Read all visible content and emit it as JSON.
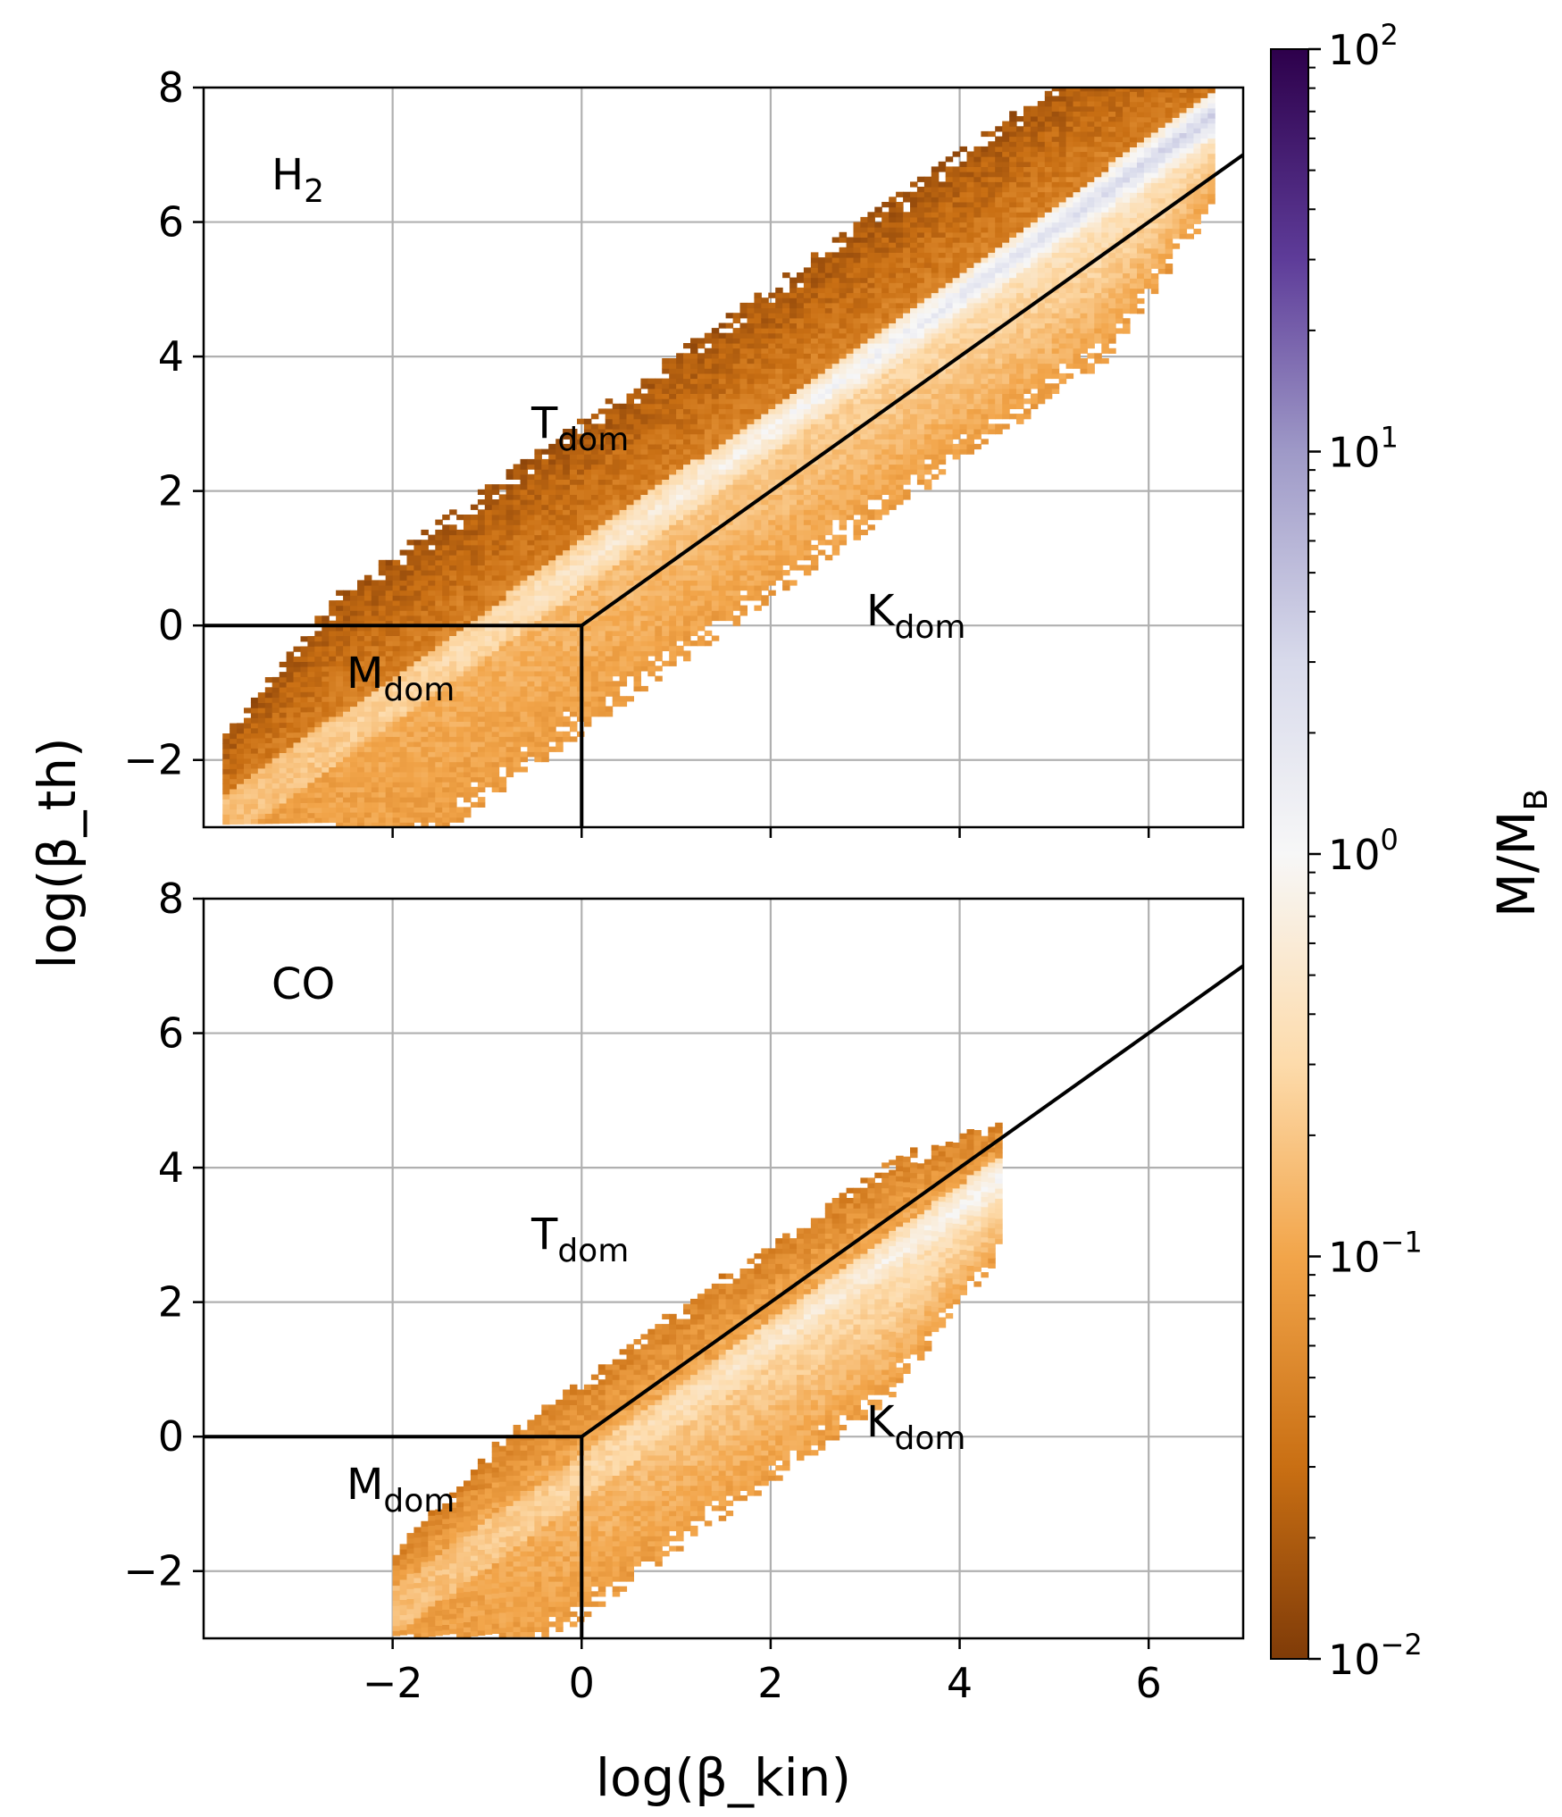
{
  "chart_data": {
    "type": "heatmap",
    "xlabel": "log(β_kin)",
    "ylabel": "log(β_th)",
    "xlim": [
      -4,
      7
    ],
    "ylim": [
      -3,
      8
    ],
    "x_ticks": [
      "−2",
      "0",
      "2",
      "4",
      "6"
    ],
    "x_tick_values": [
      -2,
      0,
      2,
      4,
      6
    ],
    "y_ticks": [
      "−2",
      "0",
      "2",
      "4",
      "6",
      "8"
    ],
    "y_tick_values": [
      -2,
      0,
      2,
      4,
      6,
      8
    ],
    "grid": true,
    "boundaries": [
      {
        "name": "horizontal",
        "points": [
          [
            -4,
            0
          ],
          [
            0,
            0
          ]
        ]
      },
      {
        "name": "vertical",
        "points": [
          [
            0,
            0
          ],
          [
            0,
            -3
          ]
        ]
      },
      {
        "name": "diagonal",
        "points": [
          [
            0,
            0
          ],
          [
            7,
            7
          ]
        ]
      }
    ],
    "panels": [
      {
        "label": "H",
        "label_sub": "2",
        "regions": [
          {
            "main": "T",
            "sub": "dom",
            "x": 0.3,
            "y": 2.6
          },
          {
            "main": "K",
            "sub": "dom",
            "x": 3.6,
            "y": 0.1
          },
          {
            "main": "M",
            "sub": "dom",
            "x": -1.8,
            "y": -0.9
          }
        ],
        "distribution": {
          "ridge_slope": 1.0,
          "ridge_intercept": 1.0,
          "x_range": [
            -3.8,
            6.7
          ],
          "lower_spread_bulk": 2.6,
          "upper_spread_bulk": 2.1,
          "core_ratio_peak": 3.0,
          "outer_ratio": 0.012
        }
      },
      {
        "label": "CO",
        "regions": [
          {
            "main": "T",
            "sub": "dom",
            "x": 0.3,
            "y": 2.6
          },
          {
            "main": "K",
            "sub": "dom",
            "x": 3.6,
            "y": 0.1
          },
          {
            "main": "M",
            "sub": "dom",
            "x": -1.8,
            "y": -0.9
          }
        ],
        "distribution": {
          "ridge_slope": 1.0,
          "ridge_intercept": -0.5,
          "x_range": [
            -2.0,
            4.4
          ],
          "lower_spread_bulk": 2.2,
          "upper_spread_bulk": 1.4,
          "core_ratio_peak": 0.8,
          "outer_ratio": 0.03
        }
      }
    ],
    "colorbar": {
      "label": "M/M",
      "label_sub": "B",
      "scale": "log",
      "range": [
        0.01,
        100
      ],
      "ticks": [
        {
          "base": "10",
          "exp": "2",
          "value": 100
        },
        {
          "base": "10",
          "exp": "1",
          "value": 10
        },
        {
          "base": "10",
          "exp": "0",
          "value": 1
        },
        {
          "base": "10",
          "exp": "−1",
          "value": 0.1
        },
        {
          "base": "10",
          "exp": "−2",
          "value": 0.01
        }
      ],
      "stops": [
        {
          "value": 0.01,
          "color": "#7f3b08"
        },
        {
          "value": 0.03,
          "color": "#c96f13"
        },
        {
          "value": 0.1,
          "color": "#f2a54a"
        },
        {
          "value": 0.3,
          "color": "#fddbab"
        },
        {
          "value": 1,
          "color": "#f7f7f7"
        },
        {
          "value": 3,
          "color": "#d8daeb"
        },
        {
          "value": 10,
          "color": "#9e99c7"
        },
        {
          "value": 30,
          "color": "#5e3c99"
        },
        {
          "value": 100,
          "color": "#2d004b"
        }
      ]
    }
  }
}
